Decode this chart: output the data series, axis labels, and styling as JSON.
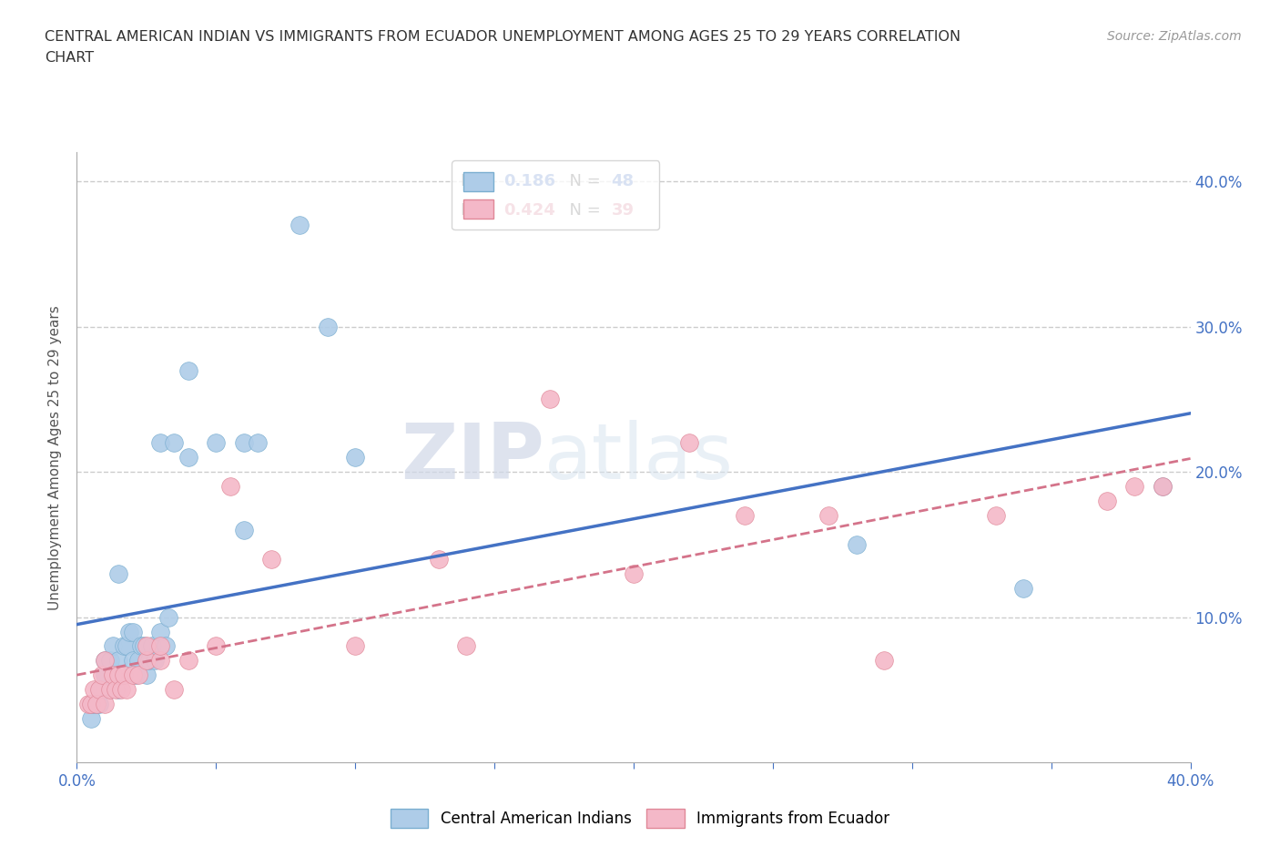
{
  "title_line1": "CENTRAL AMERICAN INDIAN VS IMMIGRANTS FROM ECUADOR UNEMPLOYMENT AMONG AGES 25 TO 29 YEARS CORRELATION",
  "title_line2": "CHART",
  "source_text": "Source: ZipAtlas.com",
  "ylabel": "Unemployment Among Ages 25 to 29 years",
  "xlim": [
    0.0,
    0.4
  ],
  "ylim": [
    0.0,
    0.42
  ],
  "xticks": [
    0.0,
    0.05,
    0.1,
    0.15,
    0.2,
    0.25,
    0.3,
    0.35,
    0.4
  ],
  "xticklabels": [
    "0.0%",
    "",
    "",
    "",
    "",
    "",
    "",
    "",
    "40.0%"
  ],
  "ytick_positions": [
    0.1,
    0.2,
    0.3,
    0.4
  ],
  "ytick_labels": [
    "10.0%",
    "20.0%",
    "30.0%",
    "40.0%"
  ],
  "grid_color": "#cccccc",
  "background_color": "#ffffff",
  "blue_color": "#aecce8",
  "blue_edge_color": "#7aaed0",
  "blue_line_color": "#4472c4",
  "pink_color": "#f4b8c8",
  "pink_edge_color": "#e08898",
  "pink_line_color": "#d4738a",
  "R_blue": 0.186,
  "N_blue": 48,
  "R_pink": 0.424,
  "N_pink": 39,
  "watermark_zip": "ZIP",
  "watermark_atlas": "atlas",
  "legend_label_blue": "Central American Indians",
  "legend_label_pink": "Immigrants from Ecuador",
  "blue_scatter_x": [
    0.005,
    0.005,
    0.006,
    0.007,
    0.008,
    0.008,
    0.009,
    0.01,
    0.01,
    0.01,
    0.012,
    0.012,
    0.013,
    0.014,
    0.015,
    0.015,
    0.015,
    0.016,
    0.017,
    0.018,
    0.019,
    0.02,
    0.02,
    0.021,
    0.022,
    0.023,
    0.024,
    0.025,
    0.026,
    0.027,
    0.028,
    0.03,
    0.03,
    0.032,
    0.033,
    0.035,
    0.04,
    0.04,
    0.05,
    0.06,
    0.06,
    0.065,
    0.08,
    0.09,
    0.1,
    0.28,
    0.34,
    0.39
  ],
  "blue_scatter_y": [
    0.03,
    0.04,
    0.04,
    0.04,
    0.04,
    0.05,
    0.05,
    0.05,
    0.06,
    0.07,
    0.05,
    0.07,
    0.08,
    0.06,
    0.05,
    0.07,
    0.13,
    0.06,
    0.08,
    0.08,
    0.09,
    0.07,
    0.09,
    0.06,
    0.07,
    0.08,
    0.08,
    0.06,
    0.07,
    0.08,
    0.07,
    0.09,
    0.22,
    0.08,
    0.1,
    0.22,
    0.21,
    0.27,
    0.22,
    0.22,
    0.16,
    0.22,
    0.37,
    0.3,
    0.21,
    0.15,
    0.12,
    0.19
  ],
  "pink_scatter_x": [
    0.004,
    0.005,
    0.006,
    0.007,
    0.008,
    0.009,
    0.01,
    0.01,
    0.012,
    0.013,
    0.014,
    0.015,
    0.016,
    0.017,
    0.018,
    0.02,
    0.022,
    0.025,
    0.025,
    0.03,
    0.03,
    0.035,
    0.04,
    0.05,
    0.055,
    0.07,
    0.1,
    0.13,
    0.14,
    0.17,
    0.2,
    0.22,
    0.24,
    0.27,
    0.29,
    0.33,
    0.37,
    0.38,
    0.39
  ],
  "pink_scatter_y": [
    0.04,
    0.04,
    0.05,
    0.04,
    0.05,
    0.06,
    0.04,
    0.07,
    0.05,
    0.06,
    0.05,
    0.06,
    0.05,
    0.06,
    0.05,
    0.06,
    0.06,
    0.07,
    0.08,
    0.07,
    0.08,
    0.05,
    0.07,
    0.08,
    0.19,
    0.14,
    0.08,
    0.14,
    0.08,
    0.25,
    0.13,
    0.22,
    0.17,
    0.17,
    0.07,
    0.17,
    0.18,
    0.19,
    0.19
  ]
}
